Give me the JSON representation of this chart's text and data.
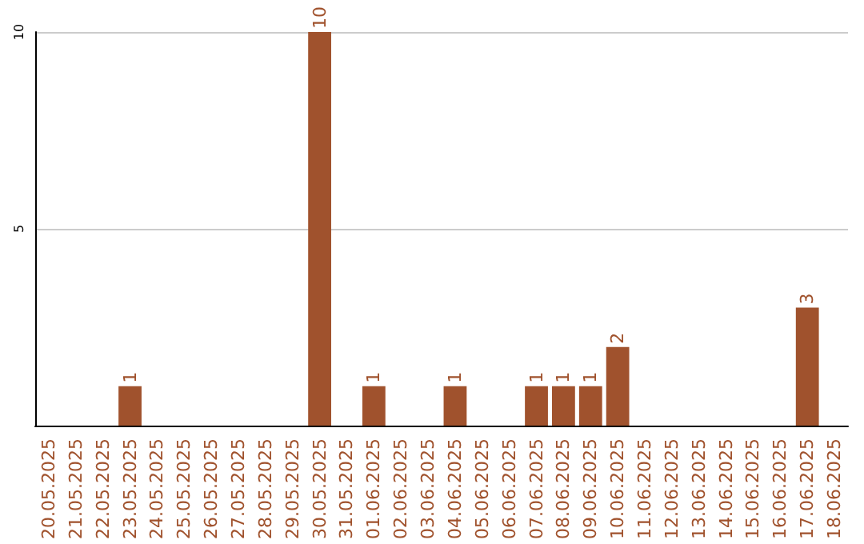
{
  "chart_data": {
    "type": "bar",
    "categories": [
      "20.05.2025",
      "21.05.2025",
      "22.05.2025",
      "23.05.2025",
      "24.05.2025",
      "25.05.2025",
      "26.05.2025",
      "27.05.2025",
      "28.05.2025",
      "29.05.2025",
      "30.05.2025",
      "31.05.2025",
      "01.06.2025",
      "02.06.2025",
      "03.06.2025",
      "04.06.2025",
      "05.06.2025",
      "06.06.2025",
      "07.06.2025",
      "08.06.2025",
      "09.06.2025",
      "10.06.2025",
      "11.06.2025",
      "12.06.2025",
      "13.06.2025",
      "14.06.2025",
      "15.06.2025",
      "16.06.2025",
      "17.06.2025",
      "18.06.2025"
    ],
    "values": [
      0,
      0,
      0,
      1,
      0,
      0,
      0,
      0,
      0,
      0,
      10,
      0,
      1,
      0,
      0,
      1,
      0,
      0,
      1,
      1,
      1,
      2,
      0,
      0,
      0,
      0,
      0,
      0,
      3,
      0
    ],
    "value_labels": [
      null,
      null,
      null,
      "1",
      null,
      null,
      null,
      null,
      null,
      null,
      "10",
      null,
      "1",
      null,
      null,
      "1",
      null,
      null,
      "1",
      "1",
      "1",
      "2",
      null,
      null,
      null,
      null,
      null,
      null,
      "3",
      null
    ],
    "color": "#a0522d",
    "ylim": [
      0,
      10
    ],
    "yticks": [
      {
        "value": 0,
        "label": null
      },
      5,
      10
    ],
    "grid": "y"
  }
}
